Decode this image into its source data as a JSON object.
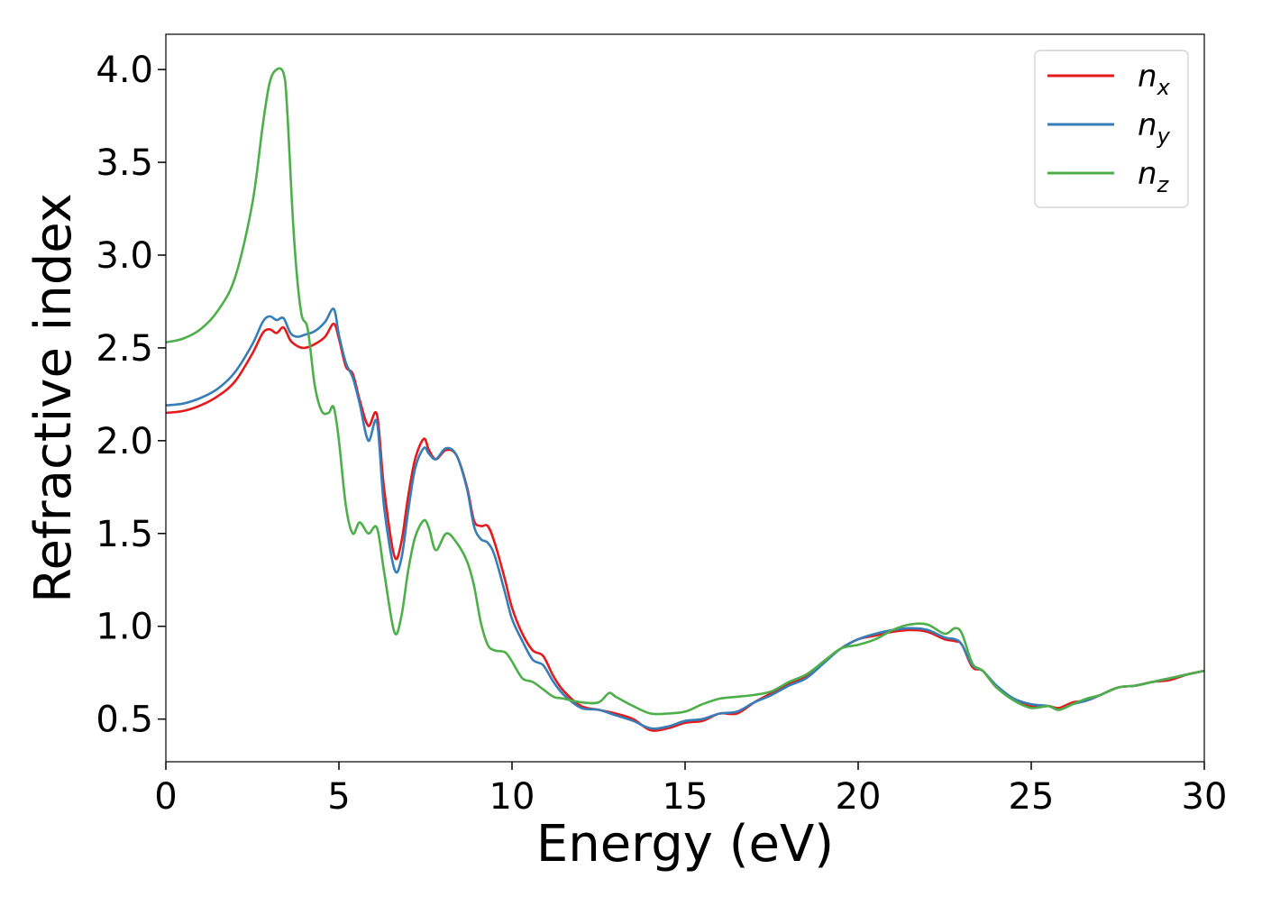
{
  "chart_data": {
    "type": "line",
    "title": "",
    "xlabel": "Energy (eV)",
    "ylabel": "Refractive index",
    "xlim": [
      0,
      30
    ],
    "ylim": [
      0.27,
      4.19
    ],
    "xticks": [
      0,
      5,
      10,
      15,
      20,
      25,
      30
    ],
    "yticks": [
      0.5,
      1.0,
      1.5,
      2.0,
      2.5,
      3.0,
      3.5,
      4.0
    ],
    "xtick_labels": [
      "0",
      "5",
      "10",
      "15",
      "20",
      "25",
      "30"
    ],
    "ytick_labels": [
      "0.5",
      "1.0",
      "1.5",
      "2.0",
      "2.5",
      "3.0",
      "3.5",
      "4.0"
    ],
    "grid": false,
    "legend_position": "top-right",
    "series": [
      {
        "name": "n_x",
        "label_base": "n",
        "label_sub": "x",
        "color": "#e41a1c",
        "x": [
          0,
          0.5,
          1.0,
          1.5,
          2.0,
          2.5,
          2.8,
          3.0,
          3.2,
          3.4,
          3.6,
          3.8,
          4.0,
          4.3,
          4.6,
          4.85,
          5.0,
          5.2,
          5.4,
          5.6,
          5.85,
          6.1,
          6.3,
          6.6,
          6.8,
          7.0,
          7.2,
          7.45,
          7.6,
          7.8,
          8.1,
          8.4,
          8.7,
          8.9,
          9.1,
          9.3,
          9.5,
          9.8,
          10.0,
          10.3,
          10.6,
          10.9,
          11.2,
          11.5,
          12.0,
          12.5,
          13.0,
          13.5,
          14.0,
          14.5,
          15.0,
          15.5,
          16.0,
          16.5,
          17.0,
          17.5,
          18.0,
          18.5,
          19.0,
          19.5,
          20.0,
          20.5,
          21.0,
          21.5,
          22.0,
          22.5,
          22.8,
          23.0,
          23.3,
          23.6,
          24.0,
          24.5,
          25.0,
          25.5,
          25.8,
          26.2,
          26.6,
          27.0,
          27.5,
          28.0,
          28.5,
          29.0,
          29.5,
          30.0
        ],
        "y": [
          2.15,
          2.16,
          2.19,
          2.24,
          2.32,
          2.47,
          2.58,
          2.6,
          2.58,
          2.61,
          2.54,
          2.51,
          2.5,
          2.52,
          2.56,
          2.63,
          2.55,
          2.4,
          2.36,
          2.22,
          2.08,
          2.14,
          1.75,
          1.38,
          1.45,
          1.7,
          1.9,
          2.01,
          1.95,
          1.9,
          1.95,
          1.92,
          1.75,
          1.57,
          1.54,
          1.54,
          1.45,
          1.25,
          1.1,
          0.96,
          0.87,
          0.84,
          0.73,
          0.65,
          0.57,
          0.55,
          0.53,
          0.5,
          0.44,
          0.45,
          0.48,
          0.49,
          0.53,
          0.53,
          0.59,
          0.64,
          0.69,
          0.73,
          0.81,
          0.88,
          0.93,
          0.95,
          0.97,
          0.98,
          0.97,
          0.93,
          0.92,
          0.9,
          0.78,
          0.76,
          0.67,
          0.61,
          0.57,
          0.57,
          0.56,
          0.59,
          0.6,
          0.63,
          0.67,
          0.68,
          0.7,
          0.71,
          0.74,
          0.76
        ]
      },
      {
        "name": "n_y",
        "label_base": "n",
        "label_sub": "y",
        "color": "#377eb8",
        "x": [
          0,
          0.5,
          1.0,
          1.5,
          2.0,
          2.5,
          2.8,
          3.0,
          3.2,
          3.4,
          3.6,
          3.8,
          4.0,
          4.3,
          4.6,
          4.85,
          5.0,
          5.2,
          5.4,
          5.6,
          5.85,
          6.1,
          6.3,
          6.6,
          6.8,
          7.0,
          7.2,
          7.45,
          7.6,
          7.8,
          8.1,
          8.4,
          8.7,
          8.9,
          9.1,
          9.3,
          9.5,
          9.8,
          10.0,
          10.3,
          10.6,
          10.9,
          11.2,
          11.5,
          12.0,
          12.5,
          13.0,
          13.5,
          14.0,
          14.5,
          15.0,
          15.5,
          16.0,
          16.5,
          17.0,
          17.5,
          18.0,
          18.5,
          19.0,
          19.5,
          20.0,
          20.5,
          21.0,
          21.5,
          22.0,
          22.5,
          22.8,
          23.0,
          23.3,
          23.6,
          24.0,
          24.5,
          25.0,
          25.5,
          25.8,
          26.2,
          26.6,
          27.0,
          27.5,
          28.0,
          28.5,
          29.0,
          29.5,
          30.0
        ],
        "y": [
          2.19,
          2.2,
          2.23,
          2.28,
          2.37,
          2.52,
          2.64,
          2.67,
          2.65,
          2.66,
          2.58,
          2.56,
          2.57,
          2.59,
          2.64,
          2.71,
          2.57,
          2.42,
          2.34,
          2.2,
          2.0,
          2.1,
          1.65,
          1.31,
          1.36,
          1.62,
          1.85,
          1.96,
          1.93,
          1.9,
          1.96,
          1.92,
          1.74,
          1.54,
          1.47,
          1.45,
          1.38,
          1.18,
          1.04,
          0.92,
          0.82,
          0.79,
          0.7,
          0.63,
          0.56,
          0.55,
          0.52,
          0.49,
          0.45,
          0.46,
          0.49,
          0.5,
          0.53,
          0.54,
          0.59,
          0.63,
          0.68,
          0.72,
          0.8,
          0.88,
          0.93,
          0.96,
          0.98,
          0.99,
          0.98,
          0.94,
          0.93,
          0.9,
          0.79,
          0.76,
          0.68,
          0.61,
          0.58,
          0.57,
          0.55,
          0.58,
          0.6,
          0.63,
          0.67,
          0.68,
          0.7,
          0.72,
          0.74,
          0.76
        ]
      },
      {
        "name": "n_z",
        "label_base": "n",
        "label_sub": "z",
        "color": "#4daf4a",
        "x": [
          0,
          0.5,
          1.0,
          1.5,
          2.0,
          2.5,
          2.8,
          3.0,
          3.2,
          3.4,
          3.5,
          3.7,
          3.9,
          4.1,
          4.3,
          4.5,
          4.7,
          4.85,
          5.0,
          5.2,
          5.4,
          5.6,
          5.85,
          6.1,
          6.3,
          6.6,
          6.8,
          7.0,
          7.2,
          7.45,
          7.6,
          7.8,
          8.1,
          8.4,
          8.7,
          8.9,
          9.1,
          9.3,
          9.5,
          9.8,
          10.0,
          10.3,
          10.6,
          10.9,
          11.2,
          11.5,
          12.0,
          12.5,
          12.8,
          13.0,
          13.5,
          14.0,
          14.5,
          15.0,
          15.5,
          16.0,
          16.5,
          17.0,
          17.5,
          18.0,
          18.5,
          19.0,
          19.5,
          20.0,
          20.5,
          21.0,
          21.5,
          22.0,
          22.5,
          22.8,
          23.0,
          23.3,
          23.6,
          24.0,
          24.5,
          25.0,
          25.5,
          25.8,
          26.2,
          26.6,
          27.0,
          27.5,
          28.0,
          28.5,
          29.0,
          29.5,
          30.0
        ],
        "y": [
          2.53,
          2.55,
          2.6,
          2.7,
          2.88,
          3.28,
          3.7,
          3.93,
          4.0,
          3.98,
          3.8,
          3.1,
          2.7,
          2.6,
          2.3,
          2.16,
          2.15,
          2.18,
          2.0,
          1.65,
          1.5,
          1.56,
          1.5,
          1.53,
          1.3,
          0.97,
          1.05,
          1.3,
          1.48,
          1.57,
          1.53,
          1.41,
          1.5,
          1.45,
          1.35,
          1.22,
          1.02,
          0.9,
          0.87,
          0.86,
          0.81,
          0.72,
          0.7,
          0.66,
          0.62,
          0.61,
          0.59,
          0.59,
          0.64,
          0.62,
          0.57,
          0.53,
          0.53,
          0.54,
          0.58,
          0.61,
          0.62,
          0.63,
          0.65,
          0.7,
          0.74,
          0.81,
          0.88,
          0.9,
          0.93,
          0.98,
          1.01,
          1.01,
          0.96,
          0.99,
          0.96,
          0.8,
          0.76,
          0.67,
          0.6,
          0.56,
          0.57,
          0.55,
          0.58,
          0.61,
          0.63,
          0.67,
          0.68,
          0.7,
          0.72,
          0.74,
          0.76
        ]
      }
    ]
  }
}
